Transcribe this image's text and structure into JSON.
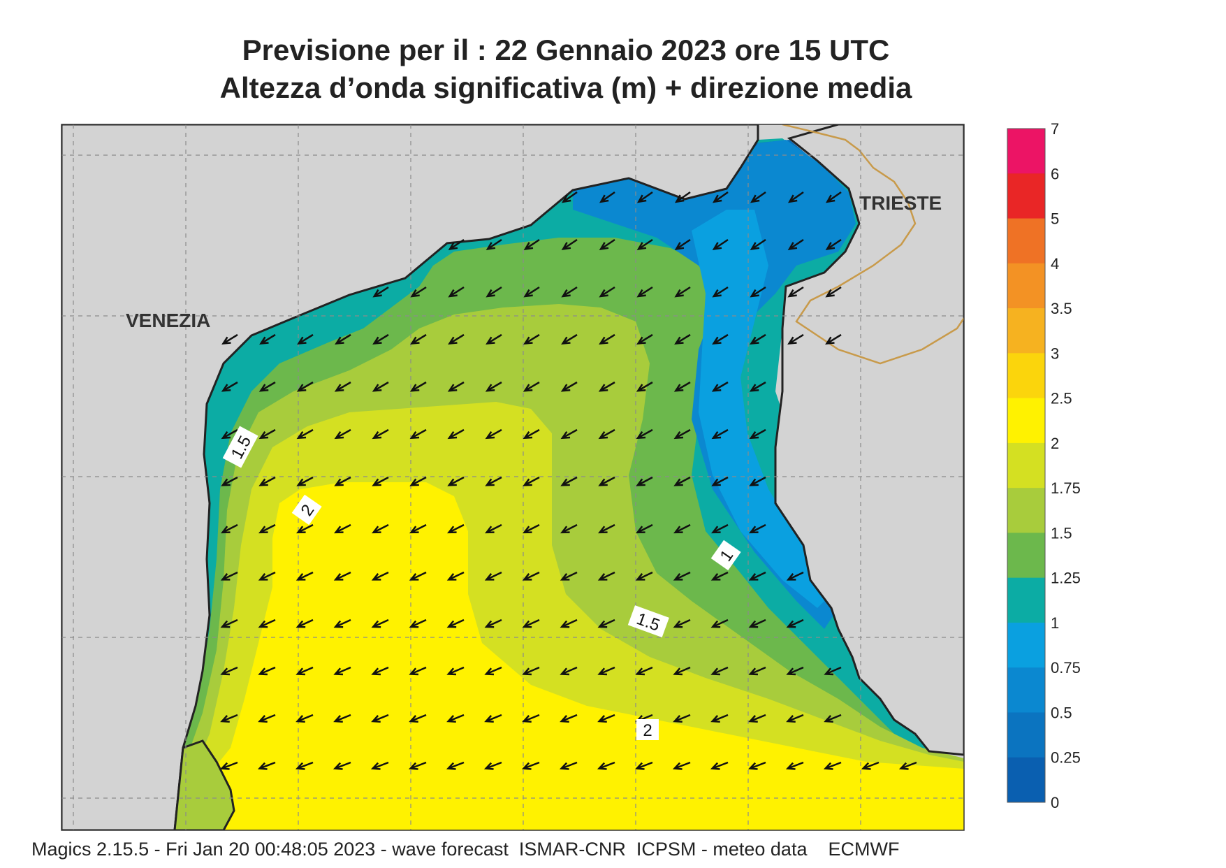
{
  "title": {
    "line1": "Previsione per il  :  22  Gennaio  2023   ore 15 UTC",
    "line2": "Altezza d’onda significativa (m) + direzione media"
  },
  "map": {
    "cities": [
      "VENEZIA",
      "TRIESTE"
    ],
    "contour_labels": [
      "1.5",
      "2",
      "1",
      "1.5",
      "2"
    ],
    "land_color": "#d3d3d3",
    "coast_color": "#222222",
    "border_color": "#c89a4a",
    "wave_direction": "ENE → WSW (arrows pointing south-west)"
  },
  "colorbar": {
    "ticks": [
      "7",
      "6",
      "5",
      "4",
      "3.5",
      "3",
      "2.5",
      "2",
      "1.75",
      "1.5",
      "1.25",
      "1",
      "0.75",
      "0.5",
      "0.25",
      "0"
    ],
    "colors": [
      "#ec1465",
      "#e92626",
      "#ef7225",
      "#f39224",
      "#f6b220",
      "#fbd50c",
      "#fff200",
      "#d4e022",
      "#a8cc3c",
      "#6cb84c",
      "#0caca4",
      "#0aa0e0",
      "#0b88d0",
      "#0b74c0",
      "#0a5fb0"
    ]
  },
  "footer": "Magics 2.15.5 - Fri Jan 20 00:48:05 2023 - wave forecast  ISMAR-CNR  ICPSM - meteo data    ECMWF"
}
